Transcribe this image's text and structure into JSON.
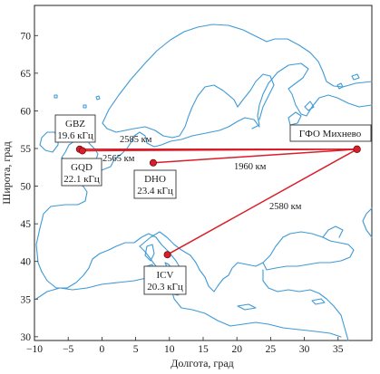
{
  "map": {
    "x_axis_title": "Долгота, град",
    "y_axis_title": "Широта, град",
    "x_range": [
      -10,
      40
    ],
    "y_range": [
      29.5,
      74
    ],
    "x_ticks": [
      "−10",
      "−5",
      "0",
      "5",
      "10",
      "15",
      "20",
      "25",
      "30",
      "35"
    ],
    "x_tick_values": [
      -10,
      -5,
      0,
      5,
      10,
      15,
      20,
      25,
      30,
      35
    ],
    "y_ticks": [
      "30",
      "35",
      "40",
      "45",
      "50",
      "55",
      "60",
      "65",
      "70"
    ],
    "y_tick_values": [
      30,
      35,
      40,
      45,
      50,
      55,
      60,
      65,
      70
    ],
    "coast_color": "#3e9ad6",
    "path_color": "#d91e2a"
  },
  "receiver": {
    "name": "ГФО Михнево",
    "lon": 37.8,
    "lat": 54.9
  },
  "transmitters": [
    {
      "id": "gbz",
      "code": "GBZ",
      "freq": "19.6 кГц",
      "lon": -3.3,
      "lat": 54.9
    },
    {
      "id": "gqd",
      "code": "GQD",
      "freq": "22.1 кГц",
      "lon": -2.9,
      "lat": 54.7
    },
    {
      "id": "dho",
      "code": "DHO",
      "freq": "23.4 кГц",
      "lon": 7.6,
      "lat": 53.1
    },
    {
      "id": "icv",
      "code": "ICV",
      "freq": "20.3 кГц",
      "lon": 9.7,
      "lat": 40.9
    }
  ],
  "paths": [
    {
      "from": "gbz",
      "distance": "2585 км"
    },
    {
      "from": "gqd",
      "distance": "2565 км"
    },
    {
      "from": "dho",
      "distance": "1960 км"
    },
    {
      "from": "icv",
      "distance": "2580 км"
    }
  ]
}
